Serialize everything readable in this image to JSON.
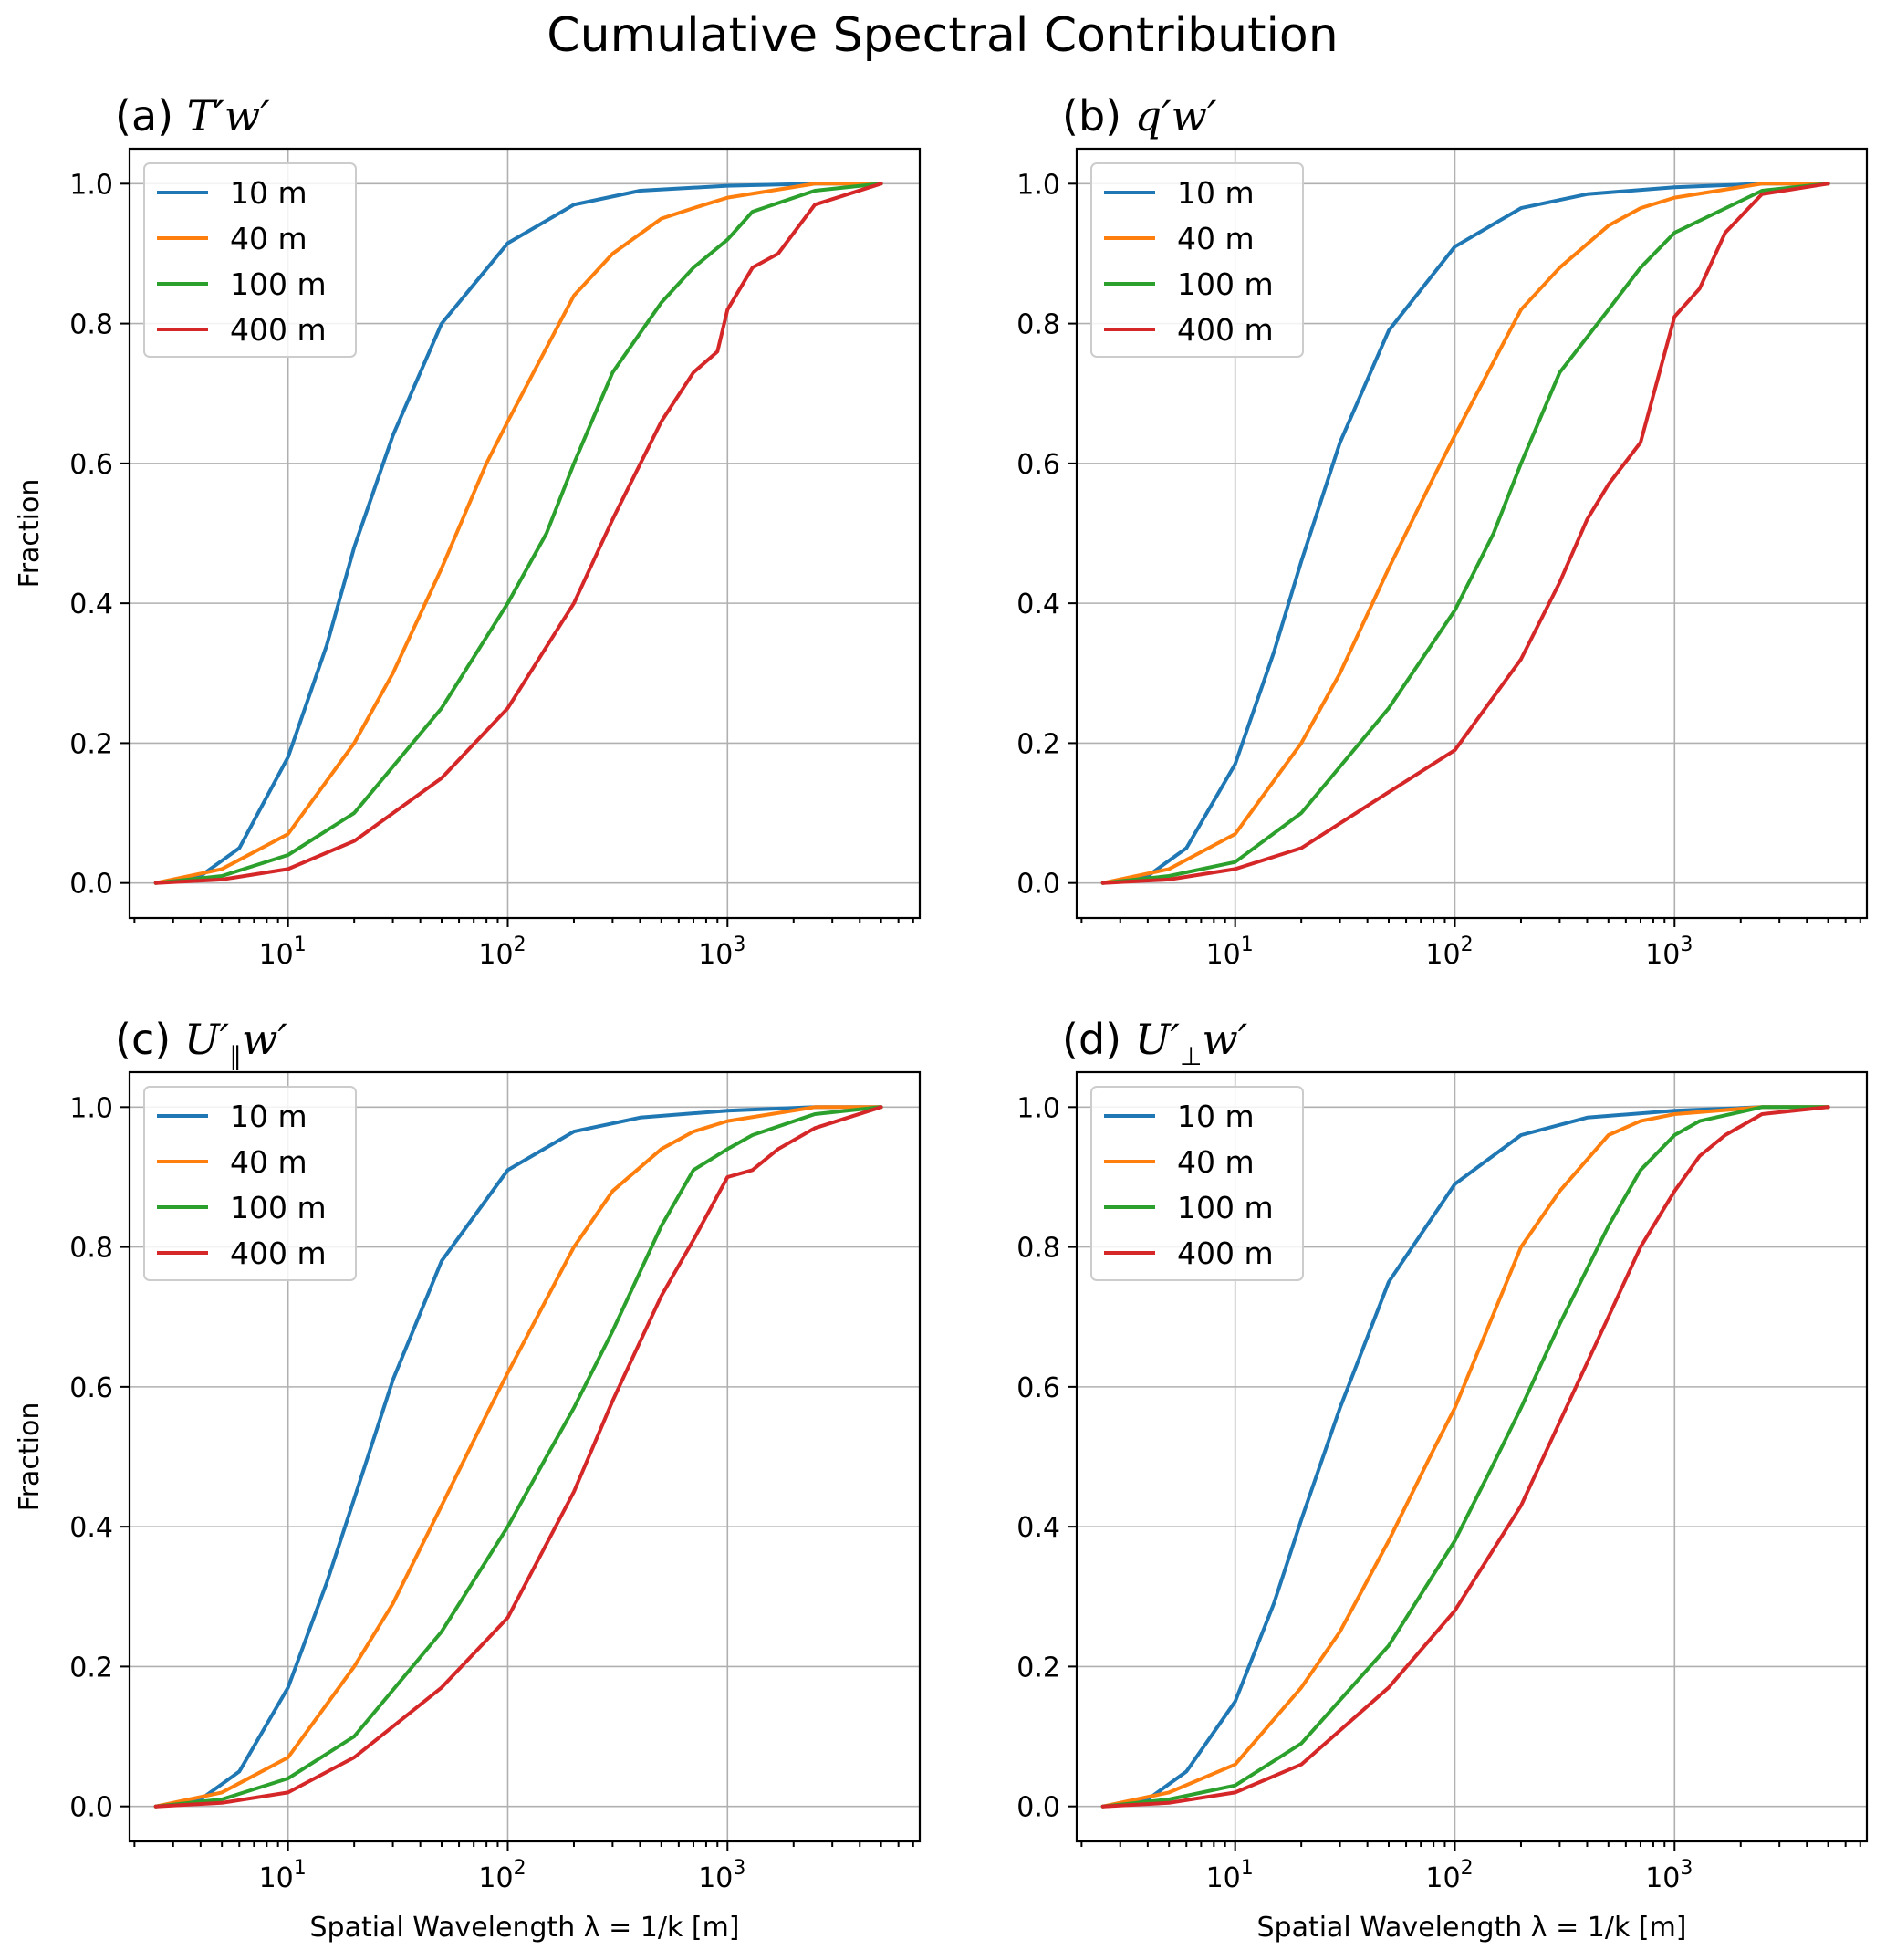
{
  "figure": {
    "title": "Cumulative Spectral Contribution"
  },
  "chart_data": [
    {
      "type": "line",
      "panel_label": "(a)",
      "title_math": "T′w′",
      "title_var": "T",
      "title_sub": "",
      "xscale": "log",
      "xlim": [
        1.9,
        7500
      ],
      "ylim": [
        -0.05,
        1.05
      ],
      "xticks": [
        10,
        100,
        1000
      ],
      "xtick_labels": [
        "10",
        "10",
        "10"
      ],
      "xtick_exps": [
        "1",
        "2",
        "3"
      ],
      "yticks": [
        0.0,
        0.2,
        0.4,
        0.6,
        0.8,
        1.0
      ],
      "ytick_labels": [
        "0.0",
        "0.2",
        "0.4",
        "0.6",
        "0.8",
        "1.0"
      ],
      "ylabel": "Fraction",
      "xlabel": "",
      "grid": true,
      "legend_location": "upper left",
      "series": [
        {
          "name": "10 m",
          "color": "#1f77b4",
          "x": [
            2.5,
            4,
            6,
            10,
            15,
            20,
            30,
            50,
            100,
            200,
            400,
            1000,
            2500,
            5000
          ],
          "y": [
            0.0,
            0.01,
            0.05,
            0.18,
            0.34,
            0.48,
            0.64,
            0.8,
            0.915,
            0.97,
            0.99,
            0.997,
            1.0,
            1.0
          ]
        },
        {
          "name": "40 m",
          "color": "#ff7f0e",
          "x": [
            2.5,
            5,
            10,
            20,
            30,
            50,
            80,
            100,
            200,
            300,
            500,
            700,
            1000,
            2500,
            5000
          ],
          "y": [
            0.0,
            0.02,
            0.07,
            0.2,
            0.3,
            0.45,
            0.6,
            0.66,
            0.84,
            0.9,
            0.95,
            0.965,
            0.98,
            1.0,
            1.0
          ]
        },
        {
          "name": "100 m",
          "color": "#2ca02c",
          "x": [
            2.5,
            5,
            10,
            20,
            50,
            100,
            150,
            200,
            300,
            500,
            700,
            1000,
            1300,
            2500,
            5000
          ],
          "y": [
            0.0,
            0.01,
            0.04,
            0.1,
            0.25,
            0.4,
            0.5,
            0.6,
            0.73,
            0.83,
            0.88,
            0.92,
            0.96,
            0.99,
            1.0
          ]
        },
        {
          "name": "400 m",
          "color": "#d62728",
          "x": [
            2.5,
            5,
            10,
            20,
            50,
            100,
            200,
            300,
            500,
            700,
            900,
            1000,
            1300,
            1700,
            2500,
            5000
          ],
          "y": [
            0.0,
            0.005,
            0.02,
            0.06,
            0.15,
            0.25,
            0.4,
            0.52,
            0.66,
            0.73,
            0.76,
            0.82,
            0.88,
            0.9,
            0.97,
            1.0
          ]
        }
      ]
    },
    {
      "type": "line",
      "panel_label": "(b)",
      "title_math": "q′w′",
      "title_var": "q",
      "title_sub": "",
      "xscale": "log",
      "xlim": [
        1.9,
        7500
      ],
      "ylim": [
        -0.05,
        1.05
      ],
      "xticks": [
        10,
        100,
        1000
      ],
      "xtick_labels": [
        "10",
        "10",
        "10"
      ],
      "xtick_exps": [
        "1",
        "2",
        "3"
      ],
      "yticks": [
        0.0,
        0.2,
        0.4,
        0.6,
        0.8,
        1.0
      ],
      "ytick_labels": [
        "0.0",
        "0.2",
        "0.4",
        "0.6",
        "0.8",
        "1.0"
      ],
      "ylabel": "",
      "xlabel": "",
      "grid": true,
      "legend_location": "upper left",
      "series": [
        {
          "name": "10 m",
          "color": "#1f77b4",
          "x": [
            2.5,
            4,
            6,
            10,
            15,
            20,
            30,
            50,
            100,
            200,
            400,
            1000,
            2500,
            5000
          ],
          "y": [
            0.0,
            0.01,
            0.05,
            0.17,
            0.33,
            0.46,
            0.63,
            0.79,
            0.91,
            0.965,
            0.985,
            0.995,
            1.0,
            1.0
          ]
        },
        {
          "name": "40 m",
          "color": "#ff7f0e",
          "x": [
            2.5,
            5,
            10,
            20,
            30,
            50,
            80,
            100,
            200,
            300,
            500,
            700,
            1000,
            2500,
            5000
          ],
          "y": [
            0.0,
            0.02,
            0.07,
            0.2,
            0.3,
            0.45,
            0.58,
            0.64,
            0.82,
            0.88,
            0.94,
            0.965,
            0.98,
            1.0,
            1.0
          ]
        },
        {
          "name": "100 m",
          "color": "#2ca02c",
          "x": [
            2.5,
            5,
            10,
            20,
            50,
            100,
            150,
            200,
            300,
            500,
            700,
            1000,
            2500,
            5000
          ],
          "y": [
            0.0,
            0.01,
            0.03,
            0.1,
            0.25,
            0.39,
            0.5,
            0.6,
            0.73,
            0.82,
            0.88,
            0.93,
            0.99,
            1.0
          ]
        },
        {
          "name": "400 m",
          "color": "#d62728",
          "x": [
            2.5,
            5,
            10,
            20,
            50,
            100,
            200,
            300,
            400,
            500,
            700,
            1000,
            1300,
            1700,
            2500,
            5000
          ],
          "y": [
            0.0,
            0.005,
            0.02,
            0.05,
            0.13,
            0.19,
            0.32,
            0.43,
            0.52,
            0.57,
            0.63,
            0.81,
            0.85,
            0.93,
            0.985,
            1.0
          ]
        }
      ]
    },
    {
      "type": "line",
      "panel_label": "(c)",
      "title_math": "U′∥w′",
      "title_var": "U",
      "title_sub": "∥",
      "xscale": "log",
      "xlim": [
        1.9,
        7500
      ],
      "ylim": [
        -0.05,
        1.05
      ],
      "xticks": [
        10,
        100,
        1000
      ],
      "xtick_labels": [
        "10",
        "10",
        "10"
      ],
      "xtick_exps": [
        "1",
        "2",
        "3"
      ],
      "yticks": [
        0.0,
        0.2,
        0.4,
        0.6,
        0.8,
        1.0
      ],
      "ytick_labels": [
        "0.0",
        "0.2",
        "0.4",
        "0.6",
        "0.8",
        "1.0"
      ],
      "ylabel": "Fraction",
      "xlabel": "Spatial Wavelength λ = 1/k [m]",
      "grid": true,
      "legend_location": "upper left",
      "series": [
        {
          "name": "10 m",
          "color": "#1f77b4",
          "x": [
            2.5,
            4,
            6,
            10,
            15,
            20,
            30,
            50,
            100,
            200,
            400,
            1000,
            2500,
            5000
          ],
          "y": [
            0.0,
            0.01,
            0.05,
            0.17,
            0.32,
            0.44,
            0.61,
            0.78,
            0.91,
            0.965,
            0.985,
            0.995,
            1.0,
            1.0
          ]
        },
        {
          "name": "40 m",
          "color": "#ff7f0e",
          "x": [
            2.5,
            5,
            10,
            20,
            30,
            50,
            80,
            100,
            200,
            300,
            500,
            700,
            1000,
            2500,
            5000
          ],
          "y": [
            0.0,
            0.02,
            0.07,
            0.2,
            0.29,
            0.43,
            0.56,
            0.62,
            0.8,
            0.88,
            0.94,
            0.965,
            0.98,
            1.0,
            1.0
          ]
        },
        {
          "name": "100 m",
          "color": "#2ca02c",
          "x": [
            2.5,
            5,
            10,
            20,
            50,
            100,
            150,
            200,
            300,
            500,
            700,
            1000,
            1300,
            2500,
            5000
          ],
          "y": [
            0.0,
            0.01,
            0.04,
            0.1,
            0.25,
            0.4,
            0.5,
            0.57,
            0.68,
            0.83,
            0.91,
            0.94,
            0.96,
            0.99,
            1.0
          ]
        },
        {
          "name": "400 m",
          "color": "#d62728",
          "x": [
            2.5,
            5,
            10,
            20,
            50,
            100,
            200,
            300,
            500,
            700,
            1000,
            1300,
            1700,
            2500,
            5000
          ],
          "y": [
            0.0,
            0.005,
            0.02,
            0.07,
            0.17,
            0.27,
            0.45,
            0.58,
            0.73,
            0.81,
            0.9,
            0.91,
            0.94,
            0.97,
            1.0
          ]
        }
      ]
    },
    {
      "type": "line",
      "panel_label": "(d)",
      "title_math": "U′⊥w′",
      "title_var": "U",
      "title_sub": "⊥",
      "xscale": "log",
      "xlim": [
        1.9,
        7500
      ],
      "ylim": [
        -0.05,
        1.05
      ],
      "xticks": [
        10,
        100,
        1000
      ],
      "xtick_labels": [
        "10",
        "10",
        "10"
      ],
      "xtick_exps": [
        "1",
        "2",
        "3"
      ],
      "yticks": [
        0.0,
        0.2,
        0.4,
        0.6,
        0.8,
        1.0
      ],
      "ytick_labels": [
        "0.0",
        "0.2",
        "0.4",
        "0.6",
        "0.8",
        "1.0"
      ],
      "ylabel": "",
      "xlabel": "Spatial Wavelength λ = 1/k [m]",
      "grid": true,
      "legend_location": "upper left",
      "series": [
        {
          "name": "10 m",
          "color": "#1f77b4",
          "x": [
            2.5,
            4,
            6,
            10,
            15,
            20,
            30,
            50,
            100,
            200,
            400,
            1000,
            2500,
            5000
          ],
          "y": [
            0.0,
            0.01,
            0.05,
            0.15,
            0.29,
            0.41,
            0.57,
            0.75,
            0.89,
            0.96,
            0.985,
            0.995,
            1.0,
            1.0
          ]
        },
        {
          "name": "40 m",
          "color": "#ff7f0e",
          "x": [
            2.5,
            5,
            10,
            20,
            30,
            50,
            80,
            100,
            200,
            300,
            500,
            700,
            1000,
            2500,
            5000
          ],
          "y": [
            0.0,
            0.02,
            0.06,
            0.17,
            0.25,
            0.38,
            0.51,
            0.57,
            0.8,
            0.88,
            0.96,
            0.98,
            0.99,
            1.0,
            1.0
          ]
        },
        {
          "name": "100 m",
          "color": "#2ca02c",
          "x": [
            2.5,
            5,
            10,
            20,
            50,
            100,
            150,
            200,
            300,
            500,
            700,
            1000,
            1300,
            2500,
            5000
          ],
          "y": [
            0.0,
            0.01,
            0.03,
            0.09,
            0.23,
            0.38,
            0.49,
            0.57,
            0.69,
            0.83,
            0.91,
            0.96,
            0.98,
            1.0,
            1.0
          ]
        },
        {
          "name": "400 m",
          "color": "#d62728",
          "x": [
            2.5,
            5,
            10,
            20,
            50,
            100,
            200,
            300,
            500,
            700,
            1000,
            1300,
            1700,
            2500,
            5000
          ],
          "y": [
            0.0,
            0.005,
            0.02,
            0.06,
            0.17,
            0.28,
            0.43,
            0.55,
            0.7,
            0.8,
            0.88,
            0.93,
            0.96,
            0.99,
            1.0
          ]
        }
      ]
    }
  ]
}
